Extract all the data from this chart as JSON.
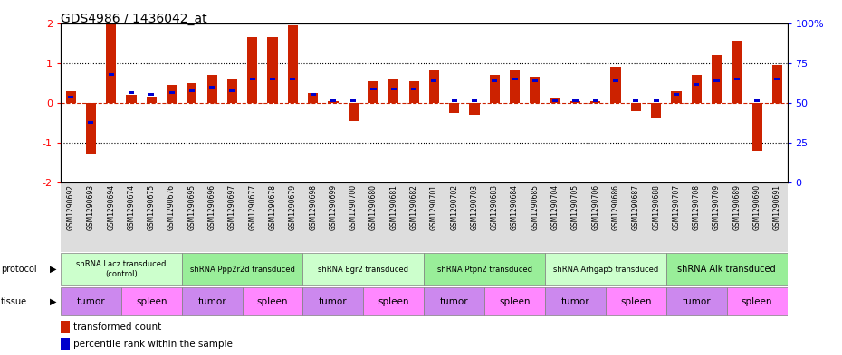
{
  "title": "GDS4986 / 1436042_at",
  "sample_ids": [
    "GSM1290692",
    "GSM1290693",
    "GSM1290694",
    "GSM1290674",
    "GSM1290675",
    "GSM1290676",
    "GSM1290695",
    "GSM1290696",
    "GSM1290697",
    "GSM1290677",
    "GSM1290678",
    "GSM1290679",
    "GSM1290698",
    "GSM1290699",
    "GSM1290700",
    "GSM1290680",
    "GSM1290681",
    "GSM1290682",
    "GSM1290701",
    "GSM1290702",
    "GSM1290703",
    "GSM1290683",
    "GSM1290684",
    "GSM1290685",
    "GSM1290704",
    "GSM1290705",
    "GSM1290706",
    "GSM1290686",
    "GSM1290687",
    "GSM1290688",
    "GSM1290707",
    "GSM1290708",
    "GSM1290709",
    "GSM1290689",
    "GSM1290690",
    "GSM1290691"
  ],
  "red_values": [
    0.3,
    -1.3,
    2.0,
    0.2,
    0.15,
    0.45,
    0.5,
    0.7,
    0.6,
    1.65,
    1.65,
    1.95,
    0.25,
    0.05,
    -0.45,
    0.55,
    0.6,
    0.55,
    0.8,
    -0.25,
    -0.3,
    0.7,
    0.8,
    0.65,
    0.1,
    0.05,
    0.05,
    0.9,
    -0.2,
    -0.4,
    0.3,
    0.7,
    1.2,
    1.55,
    -1.2,
    0.95
  ],
  "blue_values": [
    0.15,
    -0.5,
    0.7,
    0.25,
    0.2,
    0.25,
    0.3,
    0.4,
    0.3,
    0.6,
    0.6,
    0.6,
    0.2,
    0.05,
    0.05,
    0.35,
    0.35,
    0.35,
    0.55,
    0.05,
    0.05,
    0.55,
    0.6,
    0.55,
    0.05,
    0.05,
    0.05,
    0.55,
    0.05,
    0.05,
    0.2,
    0.45,
    0.55,
    0.6,
    0.05,
    0.6
  ],
  "protocols": [
    {
      "label": "shRNA Lacz transduced\n(control)",
      "start": 0,
      "end": 6,
      "color": "#ccffcc"
    },
    {
      "label": "shRNA Ppp2r2d transduced",
      "start": 6,
      "end": 12,
      "color": "#99ee99"
    },
    {
      "label": "shRNA Egr2 transduced",
      "start": 12,
      "end": 18,
      "color": "#ccffcc"
    },
    {
      "label": "shRNA Ptpn2 transduced",
      "start": 18,
      "end": 24,
      "color": "#99ee99"
    },
    {
      "label": "shRNA Arhgap5 transduced",
      "start": 24,
      "end": 30,
      "color": "#ccffcc"
    },
    {
      "label": "shRNA Alk transduced",
      "start": 30,
      "end": 36,
      "color": "#99ee99"
    }
  ],
  "tissues": [
    {
      "label": "tumor",
      "start": 0,
      "end": 3,
      "color": "#cc88ee"
    },
    {
      "label": "spleen",
      "start": 3,
      "end": 6,
      "color": "#ff88ff"
    },
    {
      "label": "tumor",
      "start": 6,
      "end": 9,
      "color": "#cc88ee"
    },
    {
      "label": "spleen",
      "start": 9,
      "end": 12,
      "color": "#ff88ff"
    },
    {
      "label": "tumor",
      "start": 12,
      "end": 15,
      "color": "#cc88ee"
    },
    {
      "label": "spleen",
      "start": 15,
      "end": 18,
      "color": "#ff88ff"
    },
    {
      "label": "tumor",
      "start": 18,
      "end": 21,
      "color": "#cc88ee"
    },
    {
      "label": "spleen",
      "start": 21,
      "end": 24,
      "color": "#ff88ff"
    },
    {
      "label": "tumor",
      "start": 24,
      "end": 27,
      "color": "#cc88ee"
    },
    {
      "label": "spleen",
      "start": 27,
      "end": 30,
      "color": "#ff88ff"
    },
    {
      "label": "tumor",
      "start": 30,
      "end": 33,
      "color": "#cc88ee"
    },
    {
      "label": "spleen",
      "start": 33,
      "end": 36,
      "color": "#ff88ff"
    }
  ],
  "ylim": [
    -2,
    2
  ],
  "y2lim": [
    0,
    100
  ],
  "yticks": [
    -2,
    -1,
    0,
    1,
    2
  ],
  "y2ticks": [
    0,
    25,
    50,
    75,
    100
  ],
  "red_color": "#cc2200",
  "blue_color": "#0000cc",
  "bar_width": 0.5,
  "protocol_font_sizes": [
    8,
    6,
    8,
    8,
    6,
    8
  ]
}
